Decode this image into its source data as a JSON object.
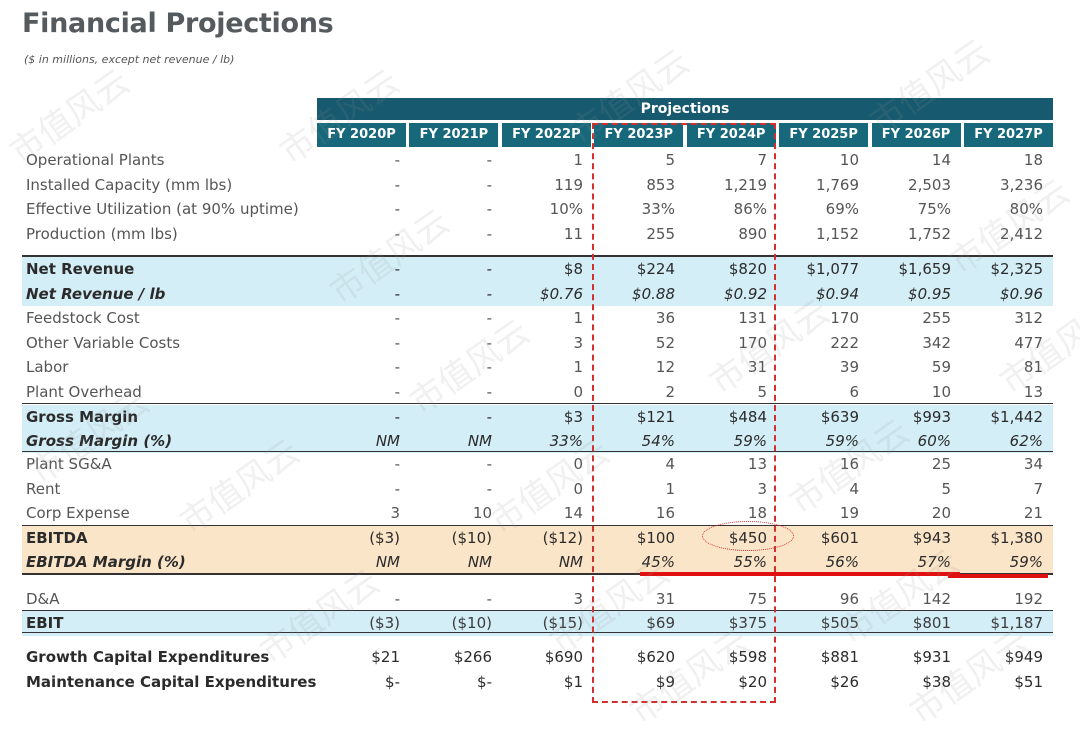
{
  "title": "Financial Projections",
  "subtitle": "($ in millions, except net revenue / lb)",
  "projections_label": "Projections",
  "columns": [
    "FY 2020P",
    "FY 2021P",
    "FY 2022P",
    "FY 2023P",
    "FY 2024P",
    "FY 2025P",
    "FY 2026P",
    "FY 2027P"
  ],
  "rows": [
    {
      "label": "Operational Plants",
      "values": [
        "-",
        "-",
        "1",
        "5",
        "7",
        "10",
        "14",
        "18"
      ],
      "style": "plain"
    },
    {
      "label": "Installed Capacity (mm lbs)",
      "values": [
        "-",
        "-",
        "119",
        "853",
        "1,219",
        "1,769",
        "2,503",
        "3,236"
      ],
      "style": "plain"
    },
    {
      "label": "Effective Utilization (at 90% uptime)",
      "values": [
        "-",
        "-",
        "10%",
        "33%",
        "86%",
        "69%",
        "75%",
        "80%"
      ],
      "style": "plain"
    },
    {
      "label": "Production (mm lbs)",
      "values": [
        "-",
        "-",
        "11",
        "255",
        "890",
        "1,152",
        "1,752",
        "2,412"
      ],
      "style": "plain"
    },
    {
      "label": "Net Revenue",
      "values": [
        "-",
        "-",
        "$8",
        "$224",
        "$820",
        "$1,077",
        "$1,659",
        "$2,325"
      ],
      "style": "blue-bold"
    },
    {
      "label": "Net Revenue / lb",
      "values": [
        "-",
        "-",
        "$0.76",
        "$0.88",
        "$0.92",
        "$0.94",
        "$0.95",
        "$0.96"
      ],
      "style": "blue-italic"
    },
    {
      "label": "Feedstock Cost",
      "values": [
        "-",
        "-",
        "1",
        "36",
        "131",
        "170",
        "255",
        "312"
      ],
      "style": "plain"
    },
    {
      "label": "Other Variable Costs",
      "values": [
        "-",
        "-",
        "3",
        "52",
        "170",
        "222",
        "342",
        "477"
      ],
      "style": "plain"
    },
    {
      "label": "Labor",
      "values": [
        "-",
        "-",
        "1",
        "12",
        "31",
        "39",
        "59",
        "81"
      ],
      "style": "plain"
    },
    {
      "label": "Plant Overhead",
      "values": [
        "-",
        "-",
        "0",
        "2",
        "5",
        "6",
        "10",
        "13"
      ],
      "style": "plain"
    },
    {
      "label": "Gross Margin",
      "values": [
        "-",
        "-",
        "$3",
        "$121",
        "$484",
        "$639",
        "$993",
        "$1,442"
      ],
      "style": "blue-bold"
    },
    {
      "label": "Gross Margin (%)",
      "values": [
        "NM",
        "NM",
        "33%",
        "54%",
        "59%",
        "59%",
        "60%",
        "62%"
      ],
      "style": "blue-italic"
    },
    {
      "label": "Plant SG&A",
      "values": [
        "-",
        "-",
        "0",
        "4",
        "13",
        "16",
        "25",
        "34"
      ],
      "style": "plain"
    },
    {
      "label": "Rent",
      "values": [
        "-",
        "-",
        "0",
        "1",
        "3",
        "4",
        "5",
        "7"
      ],
      "style": "plain"
    },
    {
      "label": "Corp Expense",
      "values": [
        "3",
        "10",
        "14",
        "16",
        "18",
        "19",
        "20",
        "21"
      ],
      "style": "plain"
    },
    {
      "label": "EBITDA",
      "values": [
        "($3)",
        "($10)",
        "($12)",
        "$100",
        "$450",
        "$601",
        "$943",
        "$1,380"
      ],
      "style": "orange-bold"
    },
    {
      "label": "EBITDA Margin (%)",
      "values": [
        "NM",
        "NM",
        "NM",
        "45%",
        "55%",
        "56%",
        "57%",
        "59%"
      ],
      "style": "orange-italic"
    },
    {
      "label": "D&A",
      "values": [
        "-",
        "-",
        "3",
        "31",
        "75",
        "96",
        "142",
        "192"
      ],
      "style": "plain"
    },
    {
      "label": "EBIT",
      "values": [
        "($3)",
        "($10)",
        "($15)",
        "$69",
        "$375",
        "$505",
        "$801",
        "$1,187"
      ],
      "style": "blue-plain"
    },
    {
      "label": "Growth Capital Expenditures",
      "values": [
        "$21",
        "$266",
        "$690",
        "$620",
        "$598",
        "$881",
        "$931",
        "$949"
      ],
      "style": "bold-plain"
    },
    {
      "label": "Maintenance Capital Expenditures",
      "values": [
        "$-",
        "$-",
        "$1",
        "$9",
        "$20",
        "$26",
        "$38",
        "$51"
      ],
      "style": "bold-plain"
    }
  ],
  "watermark_text": "市值风云",
  "colors": {
    "header_dark": "#17596e",
    "header_teal": "#17687a",
    "band_blue": "#d4eef7",
    "band_orange": "#fbe5c8",
    "annotation_red": "#d32f2f"
  }
}
